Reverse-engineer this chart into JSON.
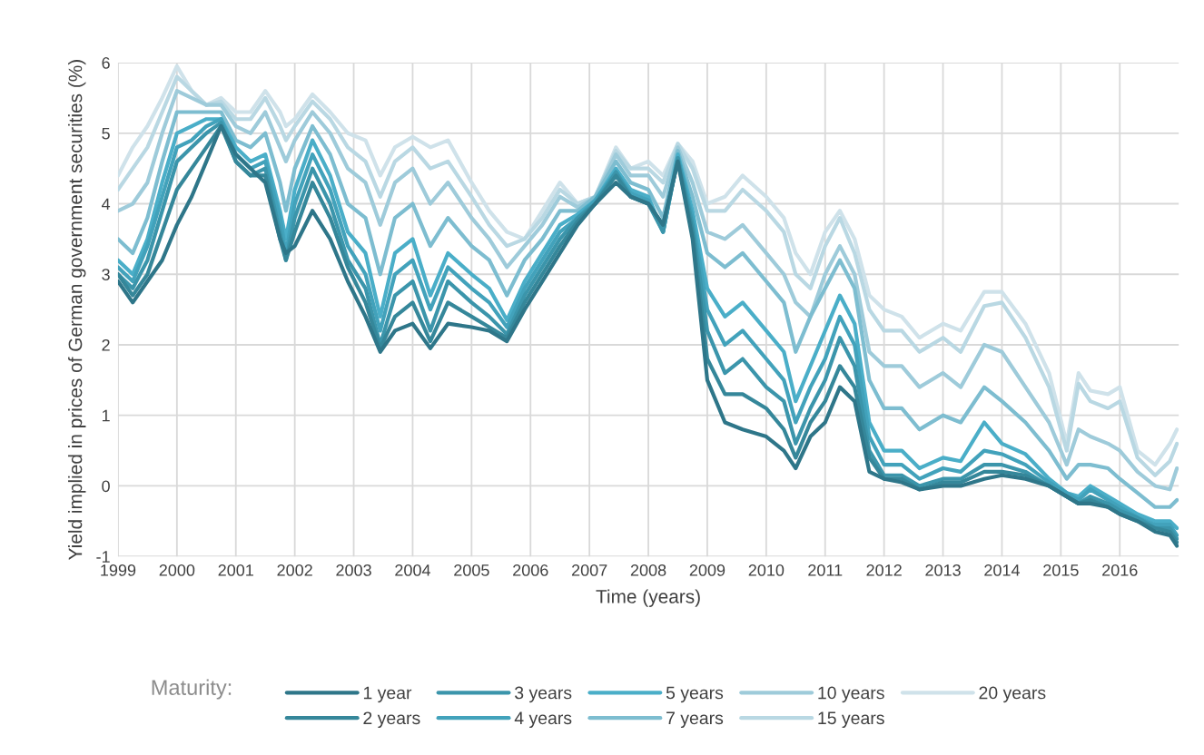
{
  "chart_data": {
    "type": "line",
    "xlabel": "Time (years)",
    "ylabel": "Yield implied in prices of German government securities (%)",
    "legend_title": "Maturity:",
    "legend": "bottom",
    "grid": true,
    "marker": "none",
    "line_style": "solid",
    "xlim": [
      1999,
      2017
    ],
    "xticks": [
      1999,
      2000,
      2001,
      2002,
      2003,
      2004,
      2005,
      2006,
      2007,
      2008,
      2009,
      2010,
      2011,
      2012,
      2013,
      2014,
      2015,
      2016
    ],
    "ylim": [
      -1,
      6
    ],
    "yticks": [
      -1,
      0,
      1,
      2,
      3,
      4,
      5,
      6
    ],
    "x": [
      1999.0,
      1999.25,
      1999.5,
      1999.75,
      2000.0,
      2000.25,
      2000.5,
      2000.75,
      2001.0,
      2001.25,
      2001.5,
      2001.75,
      2001.85,
      2002.0,
      2002.3,
      2002.6,
      2002.9,
      2003.2,
      2003.45,
      2003.7,
      2004.0,
      2004.3,
      2004.6,
      2005.0,
      2005.3,
      2005.6,
      2005.9,
      2006.2,
      2006.5,
      2006.8,
      2007.1,
      2007.45,
      2007.7,
      2008.0,
      2008.25,
      2008.5,
      2008.75,
      2009.0,
      2009.3,
      2009.6,
      2010.0,
      2010.3,
      2010.5,
      2010.75,
      2011.0,
      2011.25,
      2011.5,
      2011.75,
      2012.0,
      2012.3,
      2012.6,
      2013.0,
      2013.3,
      2013.7,
      2014.0,
      2014.4,
      2014.8,
      2015.1,
      2015.3,
      2015.5,
      2015.8,
      2016.0,
      2016.3,
      2016.6,
      2016.85,
      2016.97
    ],
    "series": [
      {
        "name": "20 years",
        "color": "#cfe2ea",
        "values": [
          4.4,
          4.8,
          5.1,
          5.5,
          5.95,
          5.6,
          5.4,
          5.5,
          5.3,
          5.3,
          5.6,
          5.3,
          5.1,
          5.2,
          5.55,
          5.3,
          5.0,
          4.9,
          4.4,
          4.8,
          4.95,
          4.8,
          4.9,
          4.3,
          3.9,
          3.6,
          3.5,
          3.9,
          4.3,
          4.0,
          4.1,
          4.8,
          4.5,
          4.6,
          4.4,
          4.85,
          4.6,
          4.0,
          4.1,
          4.4,
          4.1,
          3.8,
          3.3,
          3.0,
          3.6,
          3.9,
          3.5,
          2.7,
          2.5,
          2.4,
          2.1,
          2.3,
          2.2,
          2.75,
          2.75,
          2.3,
          1.6,
          0.6,
          1.6,
          1.35,
          1.3,
          1.4,
          0.5,
          0.3,
          0.6,
          0.8
        ]
      },
      {
        "name": "15 years",
        "color": "#b9d8e3",
        "values": [
          4.2,
          4.5,
          4.8,
          5.3,
          5.8,
          5.6,
          5.4,
          5.45,
          5.2,
          5.2,
          5.5,
          5.1,
          4.9,
          5.1,
          5.45,
          5.2,
          4.8,
          4.6,
          4.1,
          4.6,
          4.8,
          4.5,
          4.6,
          4.1,
          3.7,
          3.4,
          3.5,
          3.8,
          4.2,
          4.0,
          4.1,
          4.75,
          4.5,
          4.5,
          4.3,
          4.85,
          4.5,
          3.9,
          3.9,
          4.2,
          3.9,
          3.6,
          3.0,
          2.8,
          3.4,
          3.8,
          3.3,
          2.5,
          2.2,
          2.2,
          1.9,
          2.1,
          1.9,
          2.55,
          2.6,
          2.1,
          1.4,
          0.5,
          1.45,
          1.2,
          1.1,
          1.2,
          0.4,
          0.15,
          0.35,
          0.6
        ]
      },
      {
        "name": "10 years",
        "color": "#9ecbda",
        "values": [
          3.9,
          4.0,
          4.3,
          5.0,
          5.6,
          5.5,
          5.4,
          5.4,
          5.1,
          5.0,
          5.3,
          4.8,
          4.6,
          4.9,
          5.3,
          5.0,
          4.5,
          4.3,
          3.7,
          4.3,
          4.5,
          4.0,
          4.3,
          3.8,
          3.5,
          3.1,
          3.4,
          3.7,
          4.1,
          3.95,
          4.1,
          4.7,
          4.4,
          4.4,
          4.1,
          4.8,
          4.3,
          3.6,
          3.5,
          3.7,
          3.3,
          3.0,
          2.6,
          2.4,
          3.0,
          3.4,
          3.0,
          1.9,
          1.7,
          1.7,
          1.4,
          1.6,
          1.4,
          2.0,
          1.9,
          1.4,
          0.9,
          0.3,
          0.8,
          0.7,
          0.6,
          0.5,
          0.2,
          0.0,
          -0.05,
          0.25
        ]
      },
      {
        "name": "7 years",
        "color": "#7dbdd0",
        "values": [
          3.5,
          3.3,
          3.8,
          4.6,
          5.3,
          5.3,
          5.3,
          5.3,
          4.9,
          4.8,
          5.0,
          4.3,
          3.9,
          4.5,
          5.1,
          4.7,
          4.0,
          3.8,
          3.0,
          3.8,
          4.0,
          3.4,
          3.8,
          3.4,
          3.2,
          2.7,
          3.2,
          3.5,
          3.9,
          3.9,
          4.1,
          4.6,
          4.3,
          4.2,
          3.8,
          4.75,
          4.1,
          3.3,
          3.1,
          3.3,
          2.9,
          2.6,
          1.9,
          2.4,
          2.8,
          3.2,
          2.8,
          1.5,
          1.1,
          1.1,
          0.8,
          1.0,
          0.9,
          1.4,
          1.2,
          0.9,
          0.5,
          0.1,
          0.3,
          0.3,
          0.25,
          0.1,
          -0.1,
          -0.3,
          -0.3,
          -0.2
        ]
      },
      {
        "name": "5 years",
        "color": "#4aaec8",
        "values": [
          3.2,
          3.0,
          3.5,
          4.3,
          5.0,
          5.1,
          5.2,
          5.2,
          4.8,
          4.6,
          4.7,
          3.9,
          3.5,
          4.2,
          4.9,
          4.4,
          3.6,
          3.3,
          2.4,
          3.3,
          3.5,
          2.7,
          3.3,
          3.0,
          2.8,
          2.35,
          2.9,
          3.3,
          3.7,
          3.85,
          4.05,
          4.5,
          4.2,
          4.1,
          3.6,
          4.7,
          3.9,
          2.8,
          2.4,
          2.6,
          2.2,
          1.9,
          1.2,
          1.7,
          2.2,
          2.7,
          2.3,
          0.9,
          0.5,
          0.5,
          0.25,
          0.4,
          0.35,
          0.9,
          0.6,
          0.45,
          0.1,
          -0.1,
          -0.15,
          0.0,
          -0.15,
          -0.25,
          -0.4,
          -0.5,
          -0.5,
          -0.6
        ]
      },
      {
        "name": "4 years",
        "color": "#42a2bb",
        "values": [
          3.1,
          2.9,
          3.4,
          4.1,
          4.8,
          4.9,
          5.1,
          5.2,
          4.7,
          4.5,
          4.6,
          3.8,
          3.3,
          4.0,
          4.7,
          4.2,
          3.4,
          3.0,
          2.2,
          3.0,
          3.2,
          2.5,
          3.1,
          2.8,
          2.6,
          2.25,
          2.8,
          3.2,
          3.6,
          3.8,
          4.05,
          4.45,
          4.15,
          4.05,
          3.6,
          4.65,
          3.8,
          2.5,
          2.0,
          2.2,
          1.8,
          1.5,
          0.9,
          1.4,
          1.8,
          2.4,
          2.0,
          0.7,
          0.3,
          0.3,
          0.1,
          0.25,
          0.2,
          0.5,
          0.45,
          0.3,
          0.05,
          -0.1,
          -0.2,
          -0.05,
          -0.2,
          -0.3,
          -0.45,
          -0.55,
          -0.55,
          -0.7
        ]
      },
      {
        "name": "3 years",
        "color": "#3b95ab",
        "values": [
          3.0,
          2.8,
          3.2,
          3.9,
          4.6,
          4.8,
          5.0,
          5.15,
          4.6,
          4.4,
          4.5,
          3.6,
          3.2,
          3.8,
          4.5,
          4.0,
          3.2,
          2.8,
          2.0,
          2.7,
          2.9,
          2.2,
          2.9,
          2.6,
          2.4,
          2.15,
          2.7,
          3.1,
          3.5,
          3.8,
          4.0,
          4.45,
          4.1,
          4.0,
          3.6,
          4.65,
          3.7,
          2.2,
          1.6,
          1.8,
          1.4,
          1.2,
          0.6,
          1.1,
          1.5,
          2.1,
          1.7,
          0.5,
          0.15,
          0.15,
          0.0,
          0.1,
          0.1,
          0.3,
          0.3,
          0.2,
          0.0,
          -0.15,
          -0.25,
          -0.15,
          -0.25,
          -0.35,
          -0.45,
          -0.6,
          -0.6,
          -0.75
        ]
      },
      {
        "name": "2 years",
        "color": "#35879a",
        "values": [
          3.0,
          2.7,
          3.0,
          3.6,
          4.2,
          4.5,
          4.8,
          5.1,
          4.6,
          4.4,
          4.4,
          3.5,
          3.2,
          3.6,
          4.3,
          3.8,
          3.1,
          2.6,
          1.95,
          2.4,
          2.6,
          2.05,
          2.6,
          2.4,
          2.25,
          2.1,
          2.6,
          3.0,
          3.4,
          3.75,
          4.0,
          4.4,
          4.1,
          4.0,
          3.7,
          4.6,
          3.6,
          1.8,
          1.3,
          1.3,
          1.1,
          0.8,
          0.4,
          0.9,
          1.2,
          1.7,
          1.4,
          0.4,
          0.1,
          0.1,
          -0.05,
          0.05,
          0.05,
          0.2,
          0.2,
          0.15,
          0.0,
          -0.15,
          -0.25,
          -0.2,
          -0.3,
          -0.4,
          -0.5,
          -0.6,
          -0.65,
          -0.8
        ]
      },
      {
        "name": "1 year",
        "color": "#2e7689",
        "values": [
          2.9,
          2.6,
          2.9,
          3.2,
          3.7,
          4.1,
          4.6,
          5.1,
          4.7,
          4.5,
          4.3,
          3.5,
          3.3,
          3.4,
          3.9,
          3.5,
          2.9,
          2.4,
          1.9,
          2.2,
          2.3,
          1.95,
          2.3,
          2.25,
          2.2,
          2.05,
          2.5,
          2.9,
          3.3,
          3.7,
          4.0,
          4.3,
          4.1,
          4.0,
          3.7,
          4.6,
          3.5,
          1.5,
          0.9,
          0.8,
          0.7,
          0.5,
          0.25,
          0.7,
          0.9,
          1.4,
          1.2,
          0.2,
          0.1,
          0.05,
          -0.05,
          0.0,
          0.0,
          0.1,
          0.15,
          0.1,
          0.0,
          -0.15,
          -0.25,
          -0.25,
          -0.3,
          -0.4,
          -0.5,
          -0.65,
          -0.7,
          -0.85
        ]
      }
    ]
  }
}
